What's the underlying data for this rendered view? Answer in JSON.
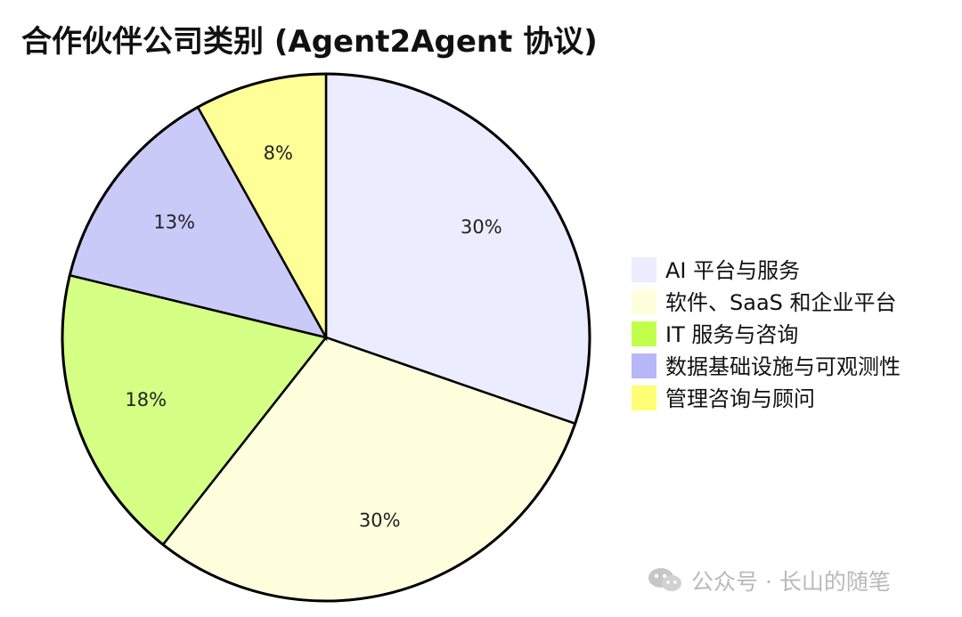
{
  "chart_data": {
    "type": "pie",
    "title": "合作伙伴公司类别 (Agent2Agent 协议)",
    "categories": [
      "AI 平台与服务",
      "软件、SaaS 和企业平台",
      "IT 服务与咨询",
      "数据基础设施与可观测性",
      "管理咨询与顾问"
    ],
    "values": [
      30,
      30,
      18,
      13,
      8
    ],
    "labels": [
      "30%",
      "30%",
      "18%",
      "13%",
      "8%"
    ],
    "colors": [
      "#ECECFF",
      "#FFFFDE",
      "#D5FF85",
      "#CACAF9",
      "#FFFF98"
    ],
    "legend_colors": [
      "#ECECFF",
      "#FFFFDE",
      "#C1FF4A",
      "#B7B7F8",
      "#FFFF76"
    ],
    "legend_position": "right"
  },
  "watermark": {
    "text": "公众号 · 长山的随笔",
    "icon": "wechat-icon"
  }
}
